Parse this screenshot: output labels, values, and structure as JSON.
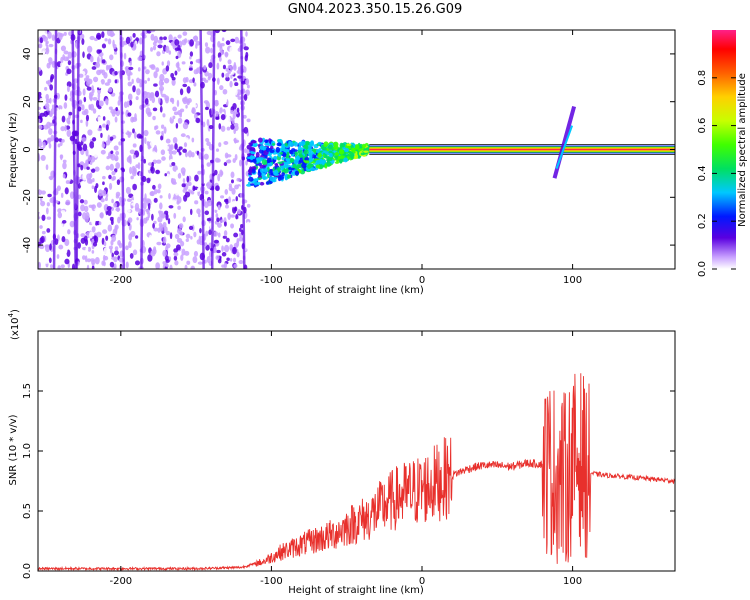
{
  "figure_title": "GN04.2023.350.15.26.G09",
  "colors": {
    "snr_line": "#e8302c",
    "zero_line_inner": "#ff2a40",
    "axis": "#000000",
    "colormap": [
      "#ffffff",
      "#c8a0ff",
      "#5a00e0",
      "#0018ff",
      "#00c8ff",
      "#00e060",
      "#40ff00",
      "#c8ff00",
      "#ffd000",
      "#ff6000",
      "#ff0000",
      "#ff2088"
    ]
  },
  "chart_data": [
    {
      "type": "heatmap",
      "title": "",
      "xlabel": "Height of straight line (km)",
      "ylabel": "Frequency (Hz)",
      "xlim": [
        -255,
        168
      ],
      "ylim": [
        -50,
        50
      ],
      "x_ticks": [
        -200,
        -100,
        0,
        100
      ],
      "y_ticks": [
        -40,
        -20,
        0,
        20,
        40
      ],
      "colorbar": {
        "label": "Normalized spectral amplitude",
        "range": [
          0.0,
          1.0
        ],
        "ticks": [
          "0.0",
          "0.2",
          "0.4",
          "0.6",
          "0.8"
        ],
        "tick_values": [
          0.0,
          0.2,
          0.4,
          0.6,
          0.8
        ]
      },
      "features": {
        "carrier_frequency_hz": 0,
        "noise_region_height_km": [
          -255,
          -115
        ],
        "dispersed_signal_height_km": [
          -115,
          -35
        ],
        "strong_carrier_height_km": [
          -35,
          168
        ],
        "chirp_feature_height_km": [
          88,
          101
        ]
      }
    },
    {
      "type": "line",
      "title": "",
      "xlabel": "Height of straight line (km)",
      "ylabel": "SNR (10 * v/v)",
      "y_multiplier_label": "(x10",
      "y_multiplier_exponent": "4",
      "y_multiplier_close": ")",
      "xlim": [
        -255,
        168
      ],
      "ylim": [
        0,
        2.0
      ],
      "x_ticks": [
        -200,
        -100,
        0,
        100
      ],
      "y_ticks": [
        "0.0",
        "0.5",
        "1.0",
        "1.5"
      ],
      "y_tick_values": [
        0.0,
        0.5,
        1.0,
        1.5
      ],
      "series": [
        {
          "x": [
            -255,
            -200,
            -150,
            -120,
            -105,
            -95,
            -80,
            -60,
            -45,
            -35,
            -25,
            -15,
            0,
            10,
            20,
            30,
            40,
            50,
            60,
            70,
            80,
            85,
            90,
            95,
            100,
            105,
            110,
            120,
            140,
            168
          ],
          "values": [
            0.02,
            0.02,
            0.02,
            0.03,
            0.08,
            0.15,
            0.22,
            0.3,
            0.4,
            0.45,
            0.55,
            0.62,
            0.68,
            0.74,
            0.8,
            0.85,
            0.88,
            0.88,
            0.87,
            0.9,
            0.89,
            0.85,
            0.8,
            0.75,
            0.9,
            0.95,
            0.82,
            0.8,
            0.78,
            0.75
          ]
        }
      ]
    }
  ]
}
